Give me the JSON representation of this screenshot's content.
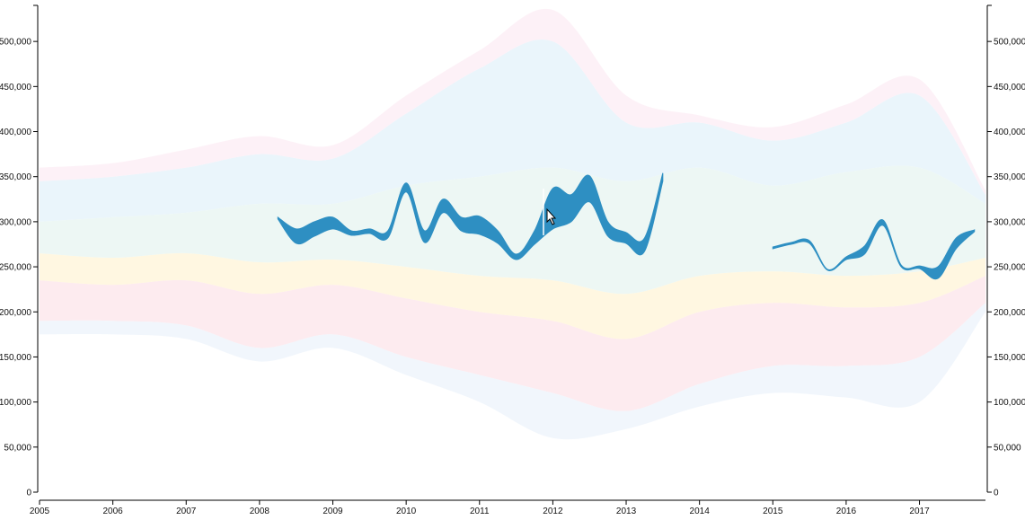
{
  "chart_data": {
    "type": "area",
    "subtype": "streamgraph",
    "title": "",
    "xlabel": "",
    "ylabel": "",
    "xlim": [
      2005,
      2017.9
    ],
    "ylim": [
      0,
      540000
    ],
    "x_ticks": [
      "2005",
      "2006",
      "2007",
      "2008",
      "2009",
      "2010",
      "2011",
      "2012",
      "2013",
      "2014",
      "2015",
      "2016",
      "2017"
    ],
    "y_ticks_left": [
      "0",
      "50,000",
      "100,000",
      "150,000",
      "200,000",
      "250,000",
      "300,000",
      "350,000",
      "400,000",
      "450,000",
      "500,000"
    ],
    "y_ticks_right": [
      "0",
      "50,000",
      "100,000",
      "150,000",
      "200,000",
      "250,000",
      "300,000",
      "350,000",
      "400,000",
      "450,000",
      "500,000"
    ],
    "grid": false,
    "highlight_color": "#2e8fc2",
    "highlighted_series": [
      {
        "x": [
          2008.25,
          2008.5,
          2008.75,
          2009.0,
          2009.25,
          2009.5,
          2009.75,
          2010.0,
          2010.25,
          2010.5,
          2010.75,
          2011.0,
          2011.25,
          2011.5,
          2011.75,
          2012.0,
          2012.25,
          2012.5,
          2012.75,
          2013.0,
          2013.25,
          2013.5
        ],
        "y0": [
          303000,
          276000,
          284000,
          292000,
          285000,
          287000,
          282000,
          333000,
          277000,
          310000,
          290000,
          286000,
          276000,
          258000,
          275000,
          292000,
          300000,
          322000,
          284000,
          276000,
          267000,
          345000
        ],
        "y1": [
          305000,
          292000,
          300000,
          305000,
          290000,
          292000,
          290000,
          343000,
          290000,
          325000,
          305000,
          306000,
          290000,
          264000,
          290000,
          337000,
          330000,
          351000,
          300000,
          288000,
          282000,
          354000
        ]
      },
      {
        "x": [
          2015.0,
          2015.25,
          2015.5,
          2015.75,
          2016.0,
          2016.25,
          2016.5,
          2016.75,
          2017.0,
          2017.25,
          2017.5,
          2017.75
        ],
        "y0": [
          270000,
          275000,
          276000,
          246000,
          258000,
          264000,
          296000,
          250000,
          248000,
          237000,
          270000,
          289000
        ],
        "y1": [
          272000,
          277000,
          279000,
          247000,
          261000,
          273000,
          302000,
          252000,
          251000,
          250000,
          282000,
          291000
        ]
      }
    ],
    "background_series": [
      {
        "color": "#e6f3fa",
        "x": [
          2005,
          2006,
          2007,
          2008,
          2009,
          2010,
          2011,
          2012,
          2013,
          2014,
          2015,
          2016,
          2017,
          2017.9
        ],
        "y0": [
          300000,
          305000,
          310000,
          320000,
          320000,
          340000,
          350000,
          360000,
          345000,
          360000,
          340000,
          355000,
          360000,
          320000
        ],
        "y1": [
          345000,
          350000,
          360000,
          375000,
          370000,
          420000,
          470000,
          500000,
          410000,
          410000,
          390000,
          410000,
          440000,
          330000
        ]
      },
      {
        "color": "#fde8ec",
        "x": [
          2005,
          2006,
          2007,
          2008,
          2009,
          2010,
          2011,
          2012,
          2013,
          2014,
          2015,
          2016,
          2017,
          2017.9
        ],
        "y0": [
          190000,
          190000,
          185000,
          160000,
          175000,
          150000,
          130000,
          110000,
          90000,
          120000,
          140000,
          140000,
          150000,
          210000
        ],
        "y1": [
          235000,
          230000,
          235000,
          220000,
          230000,
          215000,
          200000,
          190000,
          170000,
          200000,
          210000,
          205000,
          210000,
          240000
        ]
      },
      {
        "color": "#fff6dc",
        "x": [
          2005,
          2006,
          2007,
          2008,
          2009,
          2010,
          2011,
          2012,
          2013,
          2014,
          2015,
          2016,
          2017,
          2017.9
        ],
        "y0": [
          235000,
          230000,
          235000,
          220000,
          230000,
          215000,
          200000,
          190000,
          170000,
          200000,
          210000,
          205000,
          210000,
          240000
        ],
        "y1": [
          265000,
          260000,
          265000,
          255000,
          258000,
          250000,
          240000,
          235000,
          220000,
          240000,
          245000,
          240000,
          245000,
          260000
        ]
      },
      {
        "color": "#eaf6f2",
        "x": [
          2005,
          2006,
          2007,
          2008,
          2009,
          2010,
          2011,
          2012,
          2013,
          2014,
          2015,
          2016,
          2017,
          2017.9
        ],
        "y0": [
          265000,
          260000,
          265000,
          255000,
          258000,
          250000,
          240000,
          235000,
          220000,
          240000,
          245000,
          240000,
          245000,
          260000
        ],
        "y1": [
          300000,
          305000,
          310000,
          320000,
          320000,
          340000,
          350000,
          360000,
          345000,
          360000,
          340000,
          355000,
          360000,
          320000
        ]
      },
      {
        "color": "#fdeef6",
        "x": [
          2005,
          2006,
          2007,
          2008,
          2009,
          2010,
          2011,
          2012,
          2013,
          2014,
          2015,
          2016,
          2017,
          2017.9
        ],
        "y0": [
          345000,
          350000,
          360000,
          375000,
          370000,
          420000,
          470000,
          500000,
          410000,
          410000,
          390000,
          410000,
          440000,
          330000
        ],
        "y1": [
          360000,
          365000,
          380000,
          395000,
          385000,
          440000,
          490000,
          535000,
          440000,
          418000,
          405000,
          430000,
          458000,
          335000
        ]
      },
      {
        "color": "#eef4fb",
        "x": [
          2005,
          2006,
          2007,
          2008,
          2009,
          2010,
          2011,
          2012,
          2013,
          2014,
          2015,
          2016,
          2017,
          2017.9
        ],
        "y0": [
          175000,
          175000,
          170000,
          145000,
          160000,
          130000,
          100000,
          60000,
          70000,
          95000,
          110000,
          105000,
          100000,
          200000
        ],
        "y1": [
          190000,
          190000,
          185000,
          160000,
          175000,
          150000,
          130000,
          110000,
          90000,
          120000,
          140000,
          140000,
          150000,
          210000
        ]
      }
    ]
  }
}
